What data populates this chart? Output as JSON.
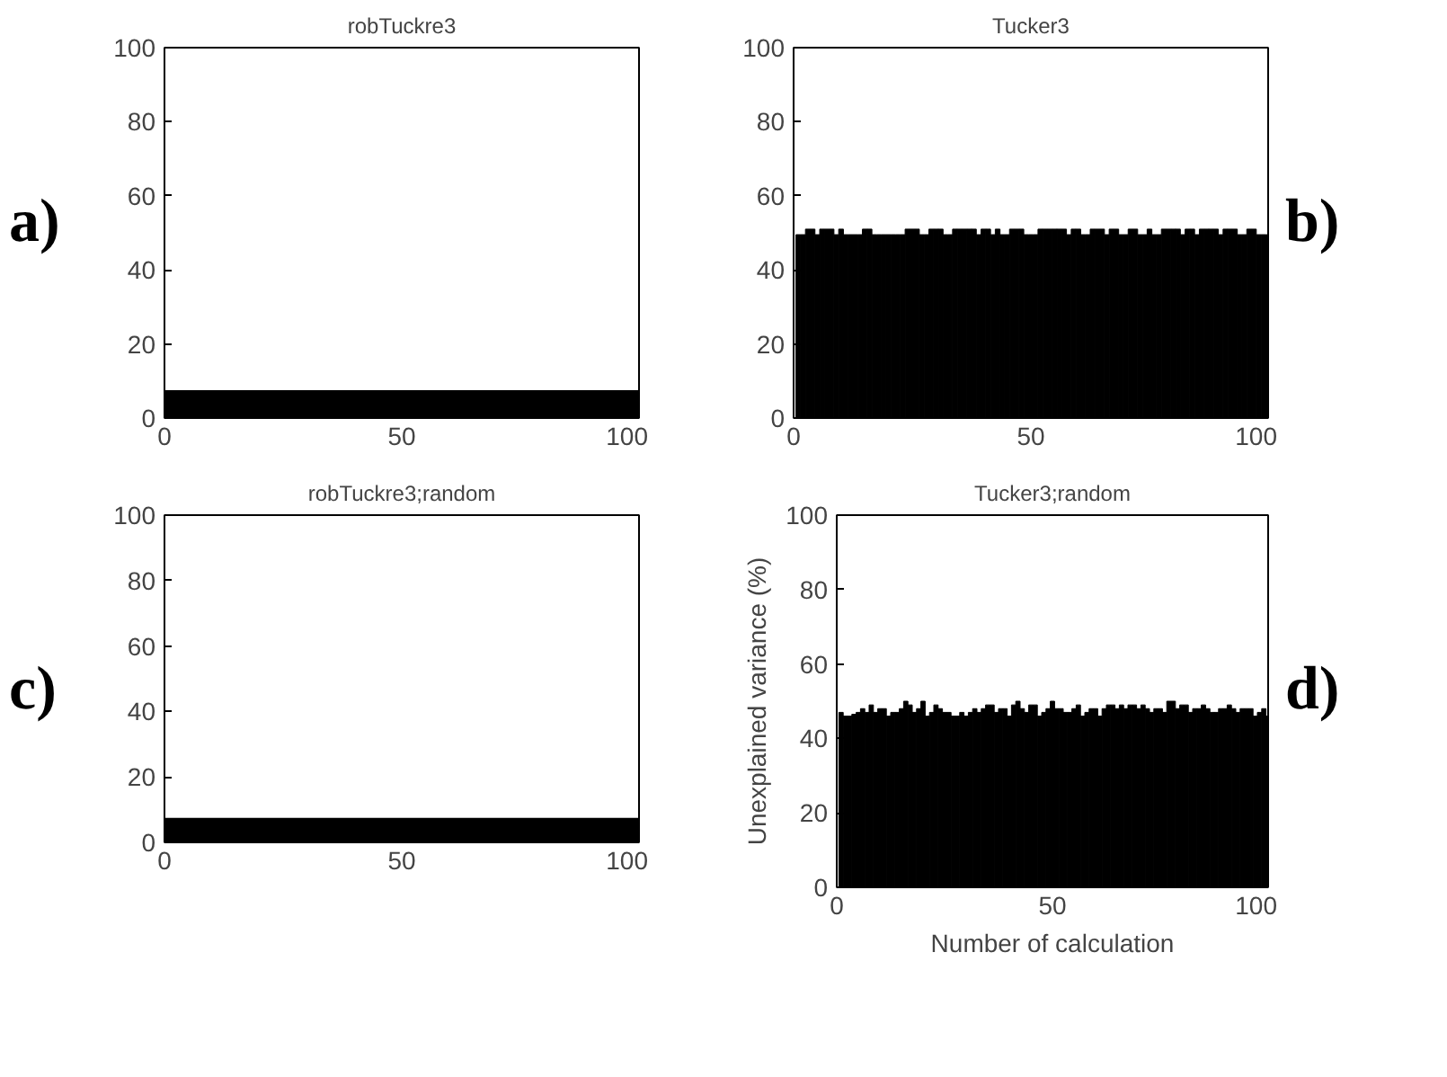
{
  "chart_data": [
    {
      "type": "bar",
      "title": "robTuckre3",
      "annotations": [
        "a)"
      ],
      "bands": [
        {
          "axis": "y",
          "from": 0,
          "to": 7.5,
          "color": "#000000"
        }
      ],
      "xlim": [
        0,
        100
      ],
      "ylim": [
        0,
        100
      ],
      "xticks": [
        0,
        50,
        100
      ],
      "yticks": [
        0,
        20,
        40,
        60,
        80,
        100
      ],
      "grid": false
    },
    {
      "type": "bar",
      "title": "Tucker3",
      "annotations": [
        "b)"
      ],
      "x": [
        1,
        2,
        3,
        4,
        5,
        6,
        7,
        8,
        9,
        10,
        11,
        12,
        13,
        14,
        15,
        16,
        17,
        18,
        19,
        20,
        21,
        22,
        23,
        24,
        25,
        26,
        27,
        28,
        29,
        30,
        31,
        32,
        33,
        34,
        35,
        36,
        37,
        38,
        39,
        40,
        41,
        42,
        43,
        44,
        45,
        46,
        47,
        48,
        49,
        50,
        51,
        52,
        53,
        54,
        55,
        56,
        57,
        58,
        59,
        60,
        61,
        62,
        63,
        64,
        65,
        66,
        67,
        68,
        69,
        70,
        71,
        72,
        73,
        74,
        75,
        76,
        77,
        78,
        79,
        80,
        81,
        82,
        83,
        84,
        85,
        86,
        87,
        88,
        89,
        90,
        91,
        92,
        93,
        94,
        95,
        96,
        97,
        98,
        99,
        100
      ],
      "values": [
        49.5,
        49.5,
        51,
        51,
        49.5,
        51,
        51,
        51,
        49.5,
        51,
        49.5,
        49.5,
        49.5,
        49.5,
        51,
        51,
        49.5,
        49.5,
        49.5,
        49.5,
        49.5,
        49.5,
        49.5,
        51,
        51,
        51,
        49.5,
        49.5,
        51,
        51,
        51,
        49.5,
        49.5,
        51,
        51,
        51,
        51,
        51,
        49.5,
        51,
        51,
        49.5,
        51,
        49.5,
        49.5,
        51,
        51,
        51,
        49.5,
        49.5,
        49.5,
        51,
        51,
        51,
        51,
        51,
        51,
        49.5,
        51,
        51,
        49.5,
        49.5,
        51,
        51,
        51,
        49.5,
        51,
        51,
        49.5,
        49.5,
        51,
        51,
        49.5,
        49.5,
        51,
        49.5,
        49.5,
        51,
        51,
        51,
        51,
        49.5,
        51,
        51,
        49.5,
        51,
        51,
        51,
        51,
        49.5,
        51,
        51,
        51,
        49.5,
        49.5,
        51,
        51,
        49.5,
        49.5,
        49.5
      ],
      "color": "#000000",
      "xlim": [
        0,
        100
      ],
      "ylim": [
        0,
        100
      ],
      "xticks": [
        0,
        50,
        100
      ],
      "yticks": [
        0,
        20,
        40,
        60,
        80,
        100
      ],
      "grid": false
    },
    {
      "type": "bar",
      "title": "robTuckre3;random",
      "annotations": [
        "c)"
      ],
      "bands": [
        {
          "axis": "y",
          "from": 0,
          "to": 7.5,
          "color": "#000000"
        }
      ],
      "xlim": [
        0,
        100
      ],
      "ylim": [
        0,
        100
      ],
      "xticks": [
        0,
        50,
        100
      ],
      "yticks": [
        0,
        20,
        40,
        60,
        80,
        100
      ],
      "grid": false
    },
    {
      "type": "bar",
      "title": "Tucker3;random",
      "xlabel": "Number of calculation",
      "ylabel": "Unexplained variance (%)",
      "annotations": [
        "d)"
      ],
      "x": [
        1,
        2,
        3,
        4,
        5,
        6,
        7,
        8,
        9,
        10,
        11,
        12,
        13,
        14,
        15,
        16,
        17,
        18,
        19,
        20,
        21,
        22,
        23,
        24,
        25,
        26,
        27,
        28,
        29,
        30,
        31,
        32,
        33,
        34,
        35,
        36,
        37,
        38,
        39,
        40,
        41,
        42,
        43,
        44,
        45,
        46,
        47,
        48,
        49,
        50,
        51,
        52,
        53,
        54,
        55,
        56,
        57,
        58,
        59,
        60,
        61,
        62,
        63,
        64,
        65,
        66,
        67,
        68,
        69,
        70,
        71,
        72,
        73,
        74,
        75,
        76,
        77,
        78,
        79,
        80,
        81,
        82,
        83,
        84,
        85,
        86,
        87,
        88,
        89,
        90,
        91,
        92,
        93,
        94,
        95,
        96,
        97,
        98,
        99,
        100
      ],
      "values": [
        47,
        46,
        46,
        46.5,
        47,
        48,
        47,
        49,
        47,
        48,
        48,
        46,
        47,
        47,
        48,
        50,
        49,
        47,
        48,
        50,
        46,
        47,
        49,
        48,
        47,
        47,
        46,
        46,
        47,
        46,
        47,
        48,
        47,
        48,
        49,
        49,
        47,
        48,
        48,
        46,
        49,
        50,
        48,
        47,
        49,
        49,
        46,
        47,
        48,
        50,
        48,
        48,
        47,
        47,
        48,
        49,
        46,
        47,
        48,
        48,
        46,
        48,
        49,
        49,
        48,
        49,
        48,
        49,
        49,
        48,
        49,
        48,
        47,
        48,
        48,
        47,
        50,
        50,
        48,
        49,
        49,
        47,
        48,
        48,
        49,
        48,
        47,
        47,
        48,
        48,
        49,
        48,
        47,
        48,
        48,
        48,
        46,
        47,
        48,
        46
      ],
      "color": "#000000",
      "xlim": [
        0,
        100
      ],
      "ylim": [
        0,
        100
      ],
      "xticks": [
        0,
        50,
        100
      ],
      "yticks": [
        0,
        20,
        40,
        60,
        80,
        100
      ],
      "grid": false
    }
  ]
}
